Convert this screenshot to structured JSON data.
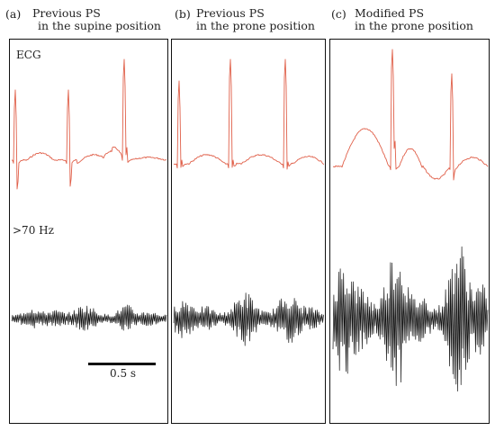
{
  "panels": [
    {
      "label": "(a)",
      "title_line1": "Previous PS",
      "title_line2": "in the supine position"
    },
    {
      "label": "(b)",
      "title_line1": "Previous PS",
      "title_line2": "in the prone position"
    },
    {
      "label": "(c)",
      "title_line1": "Modified PS",
      "title_line2": "in the prone position"
    }
  ],
  "row_labels": {
    "ecg": "ECG",
    "high_freq": ">70 Hz"
  },
  "scale_bar": {
    "label": "0.5 s",
    "duration_s": 0.5
  },
  "colors": {
    "ecg_trace": "#e0604a",
    "hf_trace": "#111111",
    "frame": "#111111"
  }
}
